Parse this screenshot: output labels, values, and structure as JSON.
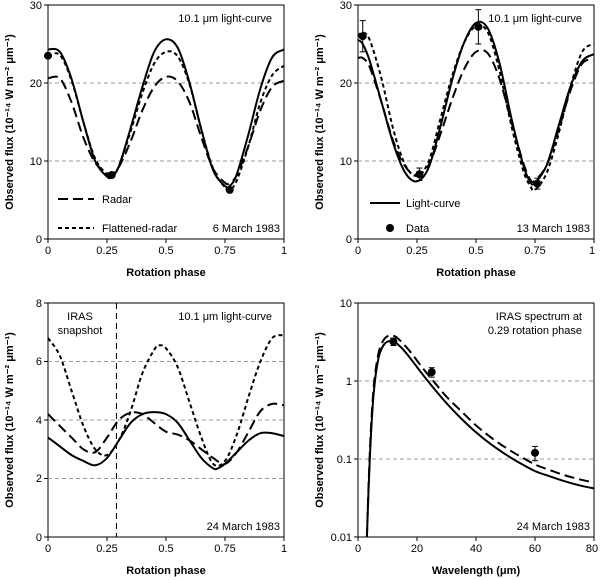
{
  "chart_data": [
    {
      "type": "line",
      "xlabel": "Rotation phase",
      "ylabel": "Observed flux (10⁻¹⁴ W m⁻² μm⁻¹)",
      "xlim": [
        0,
        1
      ],
      "ylim": [
        0,
        30
      ],
      "xticks": [
        "0",
        "0.25",
        "0.5",
        "0.75",
        "1"
      ],
      "yticks": [
        "0",
        "10",
        "20",
        "30"
      ],
      "grid_y": [
        10,
        20
      ],
      "annotations": [
        "10.1 μm light-curve",
        "6 March 1983"
      ],
      "legend": {
        "placement": "bottom-left",
        "entries": [
          "Radar",
          "Flattened-radar"
        ]
      },
      "series": [
        {
          "name": "Radar",
          "style": "long-dash",
          "x": [
            0,
            0.05,
            0.1,
            0.15,
            0.2,
            0.25,
            0.27,
            0.3,
            0.35,
            0.4,
            0.45,
            0.5,
            0.55,
            0.6,
            0.65,
            0.7,
            0.75,
            0.77,
            0.8,
            0.85,
            0.9,
            0.95,
            1
          ],
          "y": [
            20.6,
            20.6,
            17.5,
            13,
            9.8,
            8.5,
            8.3,
            9.2,
            12.5,
            16.5,
            19.5,
            20.8,
            20.2,
            17.5,
            13,
            9,
            7.2,
            7.2,
            8.2,
            12,
            16.5,
            19.5,
            20.3
          ]
        },
        {
          "name": "Flattened-radar",
          "style": "short-dash",
          "x": [
            0,
            0.05,
            0.1,
            0.15,
            0.2,
            0.25,
            0.27,
            0.3,
            0.35,
            0.4,
            0.45,
            0.5,
            0.55,
            0.6,
            0.65,
            0.7,
            0.75,
            0.77,
            0.8,
            0.85,
            0.9,
            0.95,
            1
          ],
          "y": [
            23.5,
            23.6,
            20.3,
            15,
            10.3,
            8.3,
            8.2,
            9.3,
            13.8,
            18.7,
            22.5,
            24,
            23.4,
            19.8,
            14,
            9,
            6.6,
            6.3,
            7.5,
            12,
            17.5,
            21,
            22.2
          ]
        },
        {
          "style": "solid",
          "x": [
            0,
            0.05,
            0.1,
            0.15,
            0.2,
            0.25,
            0.27,
            0.3,
            0.35,
            0.4,
            0.45,
            0.5,
            0.55,
            0.6,
            0.65,
            0.7,
            0.75,
            0.77,
            0.8,
            0.85,
            0.9,
            0.95,
            1
          ],
          "y": [
            24.3,
            24,
            20.5,
            15,
            10,
            8,
            8,
            9.3,
            14.2,
            19.5,
            24,
            25.6,
            24.5,
            20,
            14,
            8.8,
            6.8,
            6.8,
            8.3,
            13.5,
            19.3,
            23.3,
            24.3
          ]
        }
      ],
      "points": [
        {
          "x": 0,
          "y": 23.5,
          "err": 0
        },
        {
          "x": 0.27,
          "y": 8.2,
          "err": 0
        },
        {
          "x": 0.77,
          "y": 6.3,
          "err": 0
        }
      ]
    },
    {
      "type": "line",
      "xlabel": "Rotation phase",
      "ylabel": "Observed flux (10⁻¹⁴ W m⁻² μm⁻¹)",
      "xlim": [
        0,
        1
      ],
      "ylim": [
        0,
        30
      ],
      "xticks": [
        "0",
        "0.25",
        "0.5",
        "0.75",
        "1"
      ],
      "yticks": [
        "0",
        "10",
        "20",
        "30"
      ],
      "grid_y": [
        10,
        20
      ],
      "annotations": [
        "10.1 μm light-curve",
        "13 March 1983"
      ],
      "legend": {
        "placement": "bottom-left",
        "entries": [
          "Light-curve",
          "Data"
        ]
      },
      "series": [
        {
          "name": "Light-curve",
          "style": "solid",
          "x": [
            0,
            0.02,
            0.05,
            0.1,
            0.15,
            0.2,
            0.25,
            0.3,
            0.35,
            0.4,
            0.45,
            0.5,
            0.55,
            0.6,
            0.65,
            0.7,
            0.73,
            0.75,
            0.8,
            0.85,
            0.9,
            0.95,
            1
          ],
          "y": [
            25.5,
            25,
            22.8,
            17.5,
            12.2,
            8.5,
            7.4,
            9.2,
            14.5,
            20.5,
            25.2,
            27.7,
            27,
            22.5,
            15.5,
            9.5,
            7.3,
            7.2,
            9.5,
            14.5,
            19.5,
            22.8,
            23.7
          ]
        },
        {
          "style": "long-dash",
          "x": [
            0,
            0.02,
            0.05,
            0.1,
            0.15,
            0.2,
            0.25,
            0.3,
            0.35,
            0.4,
            0.45,
            0.5,
            0.55,
            0.6,
            0.65,
            0.7,
            0.73,
            0.75,
            0.8,
            0.85,
            0.9,
            0.95,
            1
          ],
          "y": [
            23.2,
            23.2,
            22,
            17.5,
            12.5,
            9.3,
            8.2,
            9.5,
            13.5,
            18,
            21.8,
            24,
            23.8,
            20.5,
            15,
            9.8,
            7.6,
            7.5,
            9.5,
            14,
            19,
            22.5,
            23
          ]
        },
        {
          "style": "short-dash",
          "x": [
            0,
            0.02,
            0.05,
            0.1,
            0.15,
            0.2,
            0.25,
            0.3,
            0.35,
            0.4,
            0.45,
            0.5,
            0.55,
            0.6,
            0.65,
            0.7,
            0.73,
            0.75,
            0.8,
            0.85,
            0.9,
            0.95,
            1
          ],
          "y": [
            26,
            26.5,
            25.5,
            20.5,
            14,
            9.5,
            8.1,
            10,
            15.5,
            21,
            25.2,
            27.3,
            26.5,
            21.5,
            14.5,
            8.8,
            6.8,
            6.3,
            8.5,
            13.5,
            19.5,
            24,
            25
          ]
        }
      ],
      "points": [
        {
          "x": 0.02,
          "y": 26,
          "err": 2
        },
        {
          "x": 0.26,
          "y": 8.3,
          "err": 0.8
        },
        {
          "x": 0.51,
          "y": 27.2,
          "err": 2.2
        },
        {
          "x": 0.76,
          "y": 7.1,
          "err": 0.7
        }
      ]
    },
    {
      "type": "line",
      "xlabel": "Rotation phase",
      "ylabel": "Observed flux (10⁻¹⁴ W m⁻² μm⁻¹)",
      "xlim": [
        0,
        1
      ],
      "ylim": [
        0,
        8
      ],
      "xticks": [
        "0",
        "0.25",
        "0.5",
        "0.75",
        "1"
      ],
      "yticks": [
        "0",
        "2",
        "4",
        "6",
        "8"
      ],
      "grid_y": [
        2,
        4,
        6
      ],
      "vline_x": 0.29,
      "annotations": [
        "IRAS",
        "snapshot",
        "10.1 μm light-curve",
        "24 March 1983"
      ],
      "series": [
        {
          "style": "solid",
          "x": [
            0,
            0.05,
            0.1,
            0.15,
            0.2,
            0.25,
            0.3,
            0.35,
            0.4,
            0.45,
            0.5,
            0.55,
            0.6,
            0.65,
            0.7,
            0.72,
            0.75,
            0.8,
            0.85,
            0.9,
            0.95,
            1
          ],
          "y": [
            3.4,
            3.1,
            2.8,
            2.6,
            2.45,
            2.7,
            3.3,
            3.9,
            4.2,
            4.27,
            4.2,
            3.9,
            3.3,
            2.7,
            2.35,
            2.35,
            2.5,
            2.9,
            3.3,
            3.55,
            3.55,
            3.45
          ]
        },
        {
          "style": "long-dash",
          "x": [
            0,
            0.05,
            0.1,
            0.15,
            0.2,
            0.25,
            0.3,
            0.35,
            0.4,
            0.45,
            0.5,
            0.55,
            0.6,
            0.65,
            0.7,
            0.75,
            0.8,
            0.85,
            0.9,
            0.95,
            1
          ],
          "y": [
            4.2,
            3.8,
            3.4,
            3.0,
            2.9,
            3.4,
            4.0,
            4.25,
            4.2,
            3.9,
            3.6,
            3.5,
            3.3,
            3.0,
            2.7,
            2.5,
            2.9,
            3.6,
            4.3,
            4.55,
            4.5
          ]
        },
        {
          "style": "short-dash",
          "x": [
            0,
            0.05,
            0.1,
            0.15,
            0.2,
            0.25,
            0.3,
            0.35,
            0.4,
            0.45,
            0.47,
            0.5,
            0.55,
            0.6,
            0.65,
            0.7,
            0.75,
            0.8,
            0.85,
            0.9,
            0.95,
            1
          ],
          "y": [
            6.8,
            6.2,
            5.0,
            3.8,
            3.0,
            2.8,
            3.3,
            4.3,
            5.6,
            6.4,
            6.55,
            6.45,
            5.8,
            4.6,
            3.4,
            2.5,
            2.6,
            3.5,
            4.8,
            6.0,
            6.8,
            6.9
          ]
        }
      ],
      "points": []
    },
    {
      "type": "line",
      "xlabel": "Wavelength (μm)",
      "ylabel": "Observed flux (10⁻¹⁴ W m⁻² μm⁻¹)",
      "xlim": [
        0,
        80
      ],
      "ylim": [
        0.01,
        10
      ],
      "yscale": "log",
      "xticks": [
        "0",
        "20",
        "40",
        "60",
        "80"
      ],
      "yticks": [
        "0.01",
        "0.1",
        "1",
        "10"
      ],
      "grid_y": [
        0.1,
        1
      ],
      "annotations": [
        "IRAS spectrum at",
        "0.29 rotation phase",
        "24 March 1983"
      ],
      "series": [
        {
          "style": "solid",
          "x": [
            3,
            4,
            5,
            6,
            7,
            8,
            9,
            10,
            11,
            12,
            13,
            15,
            18,
            22,
            26,
            30,
            35,
            40,
            45,
            50,
            55,
            60,
            65,
            70,
            75,
            80
          ],
          "y": [
            0.01,
            0.1,
            0.5,
            1.2,
            2.0,
            2.6,
            3.0,
            3.2,
            3.25,
            3.2,
            3.05,
            2.6,
            1.9,
            1.2,
            0.78,
            0.52,
            0.33,
            0.22,
            0.155,
            0.115,
            0.088,
            0.07,
            0.06,
            0.052,
            0.046,
            0.042
          ]
        },
        {
          "style": "long-dash",
          "x": [
            3,
            4,
            5,
            6,
            7,
            8,
            9,
            10,
            11,
            12,
            13,
            15,
            18,
            22,
            26,
            30,
            35,
            40,
            45,
            50,
            55,
            60,
            65,
            70,
            75,
            80
          ],
          "y": [
            0.01,
            0.12,
            0.6,
            1.4,
            2.3,
            3.0,
            3.5,
            3.75,
            3.85,
            3.8,
            3.65,
            3.1,
            2.3,
            1.45,
            0.95,
            0.63,
            0.41,
            0.27,
            0.19,
            0.14,
            0.108,
            0.085,
            0.072,
            0.062,
            0.055,
            0.05
          ]
        }
      ],
      "points": [
        {
          "x": 12,
          "y": 3.2,
          "err": 0.35
        },
        {
          "x": 25,
          "y": 1.3,
          "err": 0.18
        },
        {
          "x": 60,
          "y": 0.12,
          "err": 0.025
        }
      ]
    }
  ]
}
